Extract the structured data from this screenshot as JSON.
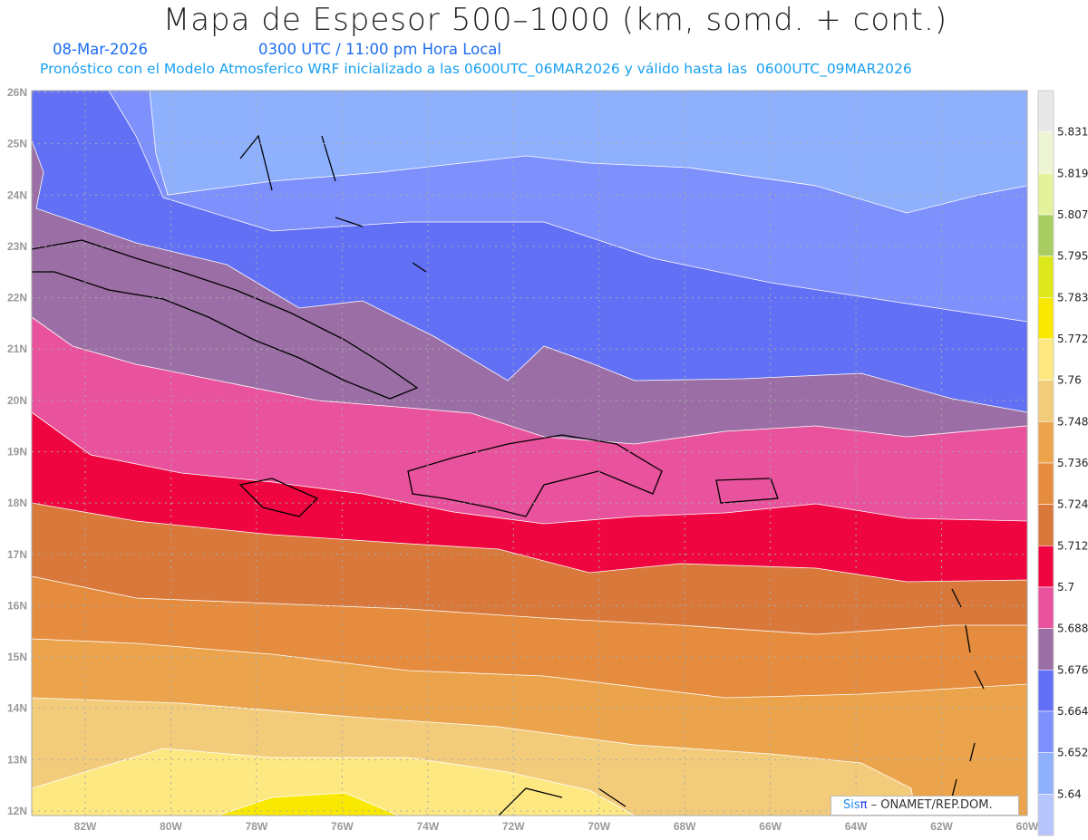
{
  "header": {
    "title": "Mapa de Espesor 500–1000 (km, somd. + cont.)",
    "date": "08-Mar-2026",
    "time": "0300 UTC / 11:00 pm Hora Local",
    "forecast": "Pronóstico con el Modelo Atmosferico WRF inicializado a las 0600UTC_06MAR2026 y válido hasta las  0600UTC_09MAR2026"
  },
  "axes": {
    "lat_labels": [
      "26N",
      "25N",
      "24N",
      "23N",
      "22N",
      "21N",
      "20N",
      "19N",
      "18N",
      "17N",
      "16N",
      "15N",
      "14N",
      "13N",
      "12N"
    ],
    "lon_labels": [
      "82W",
      "80W",
      "78W",
      "76W",
      "74W",
      "72W",
      "70W",
      "68W",
      "66W",
      "64W",
      "62W",
      "60W"
    ]
  },
  "legend": {
    "labels": [
      "5.831",
      "5.819",
      "5.807",
      "5.795",
      "5.783",
      "5.772",
      "5.76",
      "5.748",
      "5.736",
      "5.724",
      "5.712",
      "5.7",
      "5.688",
      "5.676",
      "5.664",
      "5.652",
      "5.64"
    ],
    "colors": [
      "#e8e8e8",
      "#eef5d2",
      "#e4f29c",
      "#a8cc62",
      "#dde81c",
      "#f9e800",
      "#fde882",
      "#f2cc7a",
      "#eba44c",
      "#e58c3e",
      "#d8783a",
      "#ef0640",
      "#e9529c",
      "#9b6fa5",
      "#6270f5",
      "#7e90fb",
      "#8eb0fd",
      "#b6c6fc"
    ]
  },
  "credit": {
    "sis": "Sis",
    "pi": "π",
    "org": " –  ONAMET/REP.DOM."
  }
}
